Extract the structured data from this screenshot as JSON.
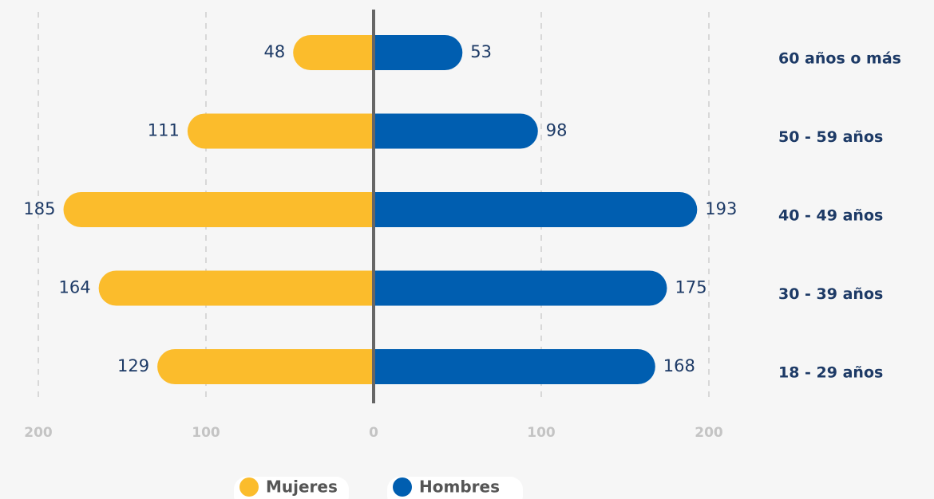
{
  "chart_data": {
    "type": "bar",
    "orientation": "horizontal",
    "categories": [
      "60 años o más",
      "50 - 59 años",
      "40 - 49 años",
      "30 - 39 años",
      "18 - 29 años"
    ],
    "series": [
      {
        "name": "Mujeres",
        "color": "#fbbc2c",
        "values": [
          48,
          111,
          185,
          164,
          129
        ]
      },
      {
        "name": "Hombres",
        "color": "#005eb0",
        "values": [
          53,
          98,
          193,
          175,
          168
        ]
      }
    ],
    "xlim": [
      -200,
      200
    ],
    "xticks": [
      {
        "value": -200,
        "label": "200"
      },
      {
        "value": -100,
        "label": "100"
      },
      0,
      100,
      200
    ],
    "grid": true
  }
}
